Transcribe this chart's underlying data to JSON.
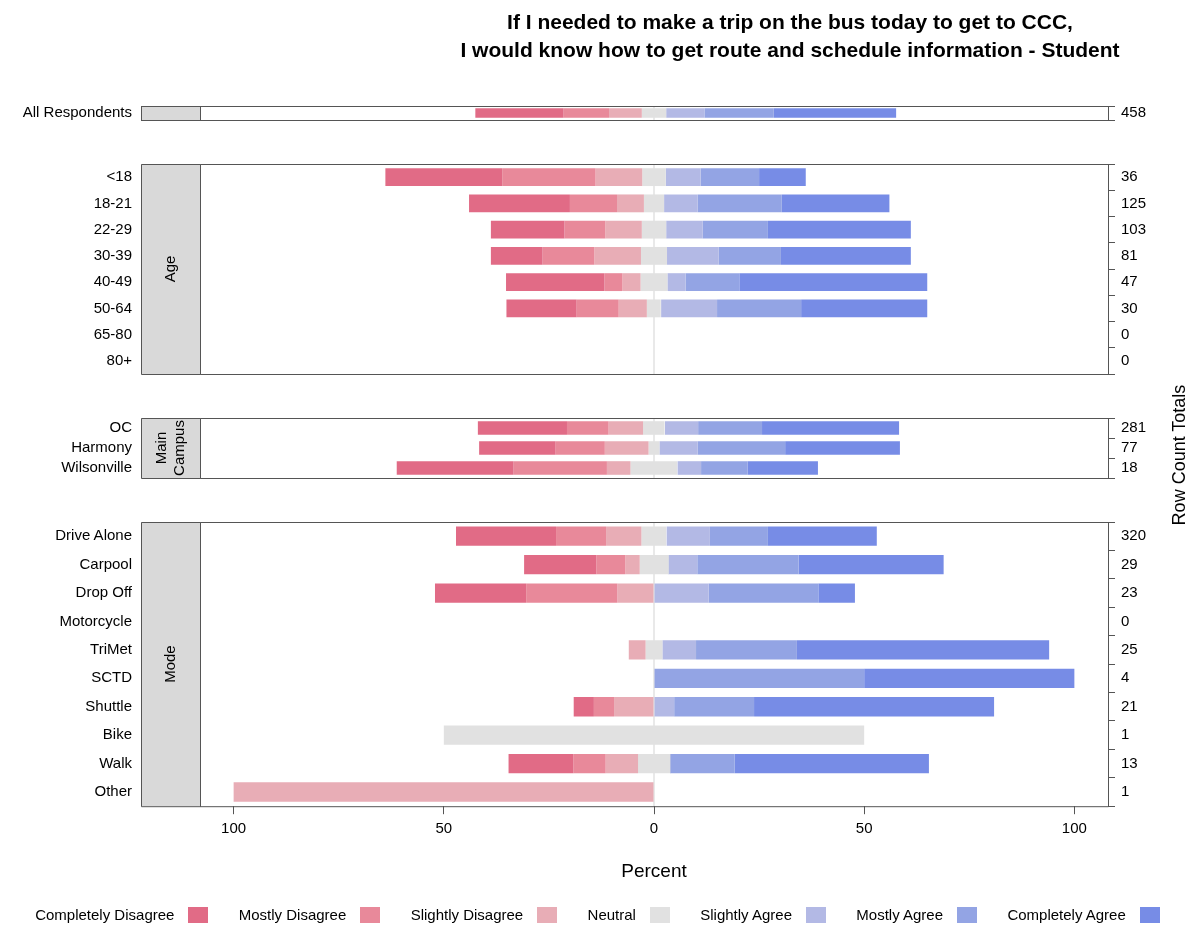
{
  "chart_data": [
    {
      "type": "bar",
      "orientation": "horizontal",
      "title": "If I needed to make a trip on the bus today to get to CCC,\nI would know how to get route and schedule information - Student",
      "categories": [
        "All Respondents"
      ],
      "y2_categories": [
        "458"
      ],
      "tick_labels": "y",
      "xlim": [
        -108,
        108
      ],
      "xticks": [
        {
          "value": -100,
          "label": null
        },
        {
          "value": -50,
          "label": null
        },
        {
          "value": 0,
          "label": null
        },
        {
          "value": 50,
          "label": null
        },
        {
          "value": 100,
          "label": null
        }
      ],
      "ref_lines": [
        {
          "axis": "x",
          "value": 0,
          "color": "#d3d3d3"
        }
      ],
      "series": [
        {
          "color": "#e16b86",
          "values": [
            21.0
          ],
          "base": [
            -42.5
          ]
        },
        {
          "color": "#e8899a",
          "values": [
            10.8
          ],
          "base": [
            -21.5
          ]
        },
        {
          "color": "#e8adb6",
          "values": [
            7.8
          ],
          "base": [
            -10.7
          ]
        },
        {
          "color": "#e1e1e1",
          "values": [
            5.8
          ],
          "base": [
            -2.9
          ]
        },
        {
          "color": "#b3b9e5",
          "values": [
            9.1
          ],
          "base": [
            2.9
          ]
        },
        {
          "color": "#93a4e4",
          "values": [
            16.5
          ],
          "base": [
            12.0
          ]
        },
        {
          "color": "#778ce6",
          "values": [
            29.1
          ],
          "base": [
            28.5
          ]
        }
      ]
    },
    {
      "type": "bar",
      "orientation": "horizontal",
      "ylabel": "Age",
      "categories": [
        "<18",
        "18-21",
        "22-29",
        "30-39",
        "40-49",
        "50-64",
        "65-80",
        "80+"
      ],
      "y2_categories": [
        "36",
        "125",
        "103",
        "81",
        "47",
        "30",
        "0",
        "0"
      ],
      "tick_labels": "y",
      "xlim": [
        -108,
        108
      ],
      "ref_lines": [
        {
          "axis": "x",
          "value": 0,
          "color": "#d3d3d3"
        }
      ],
      "series": [
        {
          "color": "#e16b86",
          "values": [
            27.8,
            24.0,
            17.5,
            12.3,
            23.4,
            16.7,
            null,
            null
          ],
          "base": [
            -63.9,
            -44.0,
            -38.8,
            -38.8,
            -35.2,
            -35.1,
            null,
            null
          ]
        },
        {
          "color": "#e8899a",
          "values": [
            22.2,
            11.2,
            9.7,
            12.3,
            4.3,
            10.0,
            null,
            null
          ],
          "base": [
            -36.1,
            -20.0,
            -21.3,
            -26.5,
            -11.8,
            -18.4,
            null,
            null
          ]
        },
        {
          "color": "#e8adb6",
          "values": [
            11.1,
            6.4,
            8.7,
            11.1,
            4.3,
            6.7,
            null,
            null
          ],
          "base": [
            -13.9,
            -8.8,
            -11.6,
            -14.2,
            -7.5,
            -8.4,
            null,
            null
          ]
        },
        {
          "color": "#e1e1e1",
          "values": [
            5.6,
            4.8,
            5.8,
            6.2,
            6.4,
            3.3,
            null,
            null
          ],
          "base": [
            -2.8,
            -2.4,
            -2.9,
            -3.1,
            -3.2,
            -1.7,
            null,
            null
          ]
        },
        {
          "color": "#b3b9e5",
          "values": [
            8.3,
            8.0,
            8.7,
            12.3,
            4.3,
            13.3,
            null,
            null
          ],
          "base": [
            2.8,
            2.4,
            2.9,
            3.1,
            3.2,
            1.7,
            null,
            null
          ]
        },
        {
          "color": "#93a4e4",
          "values": [
            13.9,
            20.0,
            15.5,
            14.8,
            12.8,
            20.0,
            null,
            null
          ],
          "base": [
            11.1,
            10.4,
            11.6,
            15.4,
            7.5,
            15.0,
            null,
            null
          ]
        },
        {
          "color": "#778ce6",
          "values": [
            11.1,
            25.6,
            34.0,
            30.9,
            44.7,
            30.0,
            null,
            null
          ],
          "base": [
            25.0,
            30.4,
            27.1,
            30.2,
            20.3,
            35.0,
            null,
            null
          ]
        }
      ]
    },
    {
      "type": "bar",
      "orientation": "horizontal",
      "ylabel": "Main Campus",
      "y2label": "Row Count Totals",
      "categories": [
        "OC",
        "Harmony",
        "Wilsonville"
      ],
      "y2_categories": [
        "281",
        "77",
        "18"
      ],
      "tick_labels": "y",
      "xlim": [
        -108,
        108
      ],
      "ref_lines": [
        {
          "axis": "x",
          "value": 0,
          "color": "#d3d3d3"
        }
      ],
      "series": [
        {
          "color": "#e16b86",
          "values": [
            21.2,
            18.2,
            27.8
          ],
          "base": [
            -41.9,
            -41.6,
            -61.2
          ]
        },
        {
          "color": "#e8899a",
          "values": [
            9.9,
            11.7,
            22.2
          ],
          "base": [
            -20.7,
            -23.4,
            -33.4
          ]
        },
        {
          "color": "#e8adb6",
          "values": [
            8.2,
            10.4,
            5.6
          ],
          "base": [
            -10.8,
            -11.7,
            -11.2
          ]
        },
        {
          "color": "#e1e1e1",
          "values": [
            5.1,
            2.6,
            11.1
          ],
          "base": [
            -2.6,
            -1.3,
            -5.6
          ]
        },
        {
          "color": "#b3b9e5",
          "values": [
            7.9,
            9.1,
            5.6
          ],
          "base": [
            2.6,
            1.3,
            5.6
          ]
        },
        {
          "color": "#93a4e4",
          "values": [
            15.2,
            20.8,
            11.1
          ],
          "base": [
            10.5,
            10.4,
            11.2
          ]
        },
        {
          "color": "#778ce6",
          "values": [
            32.6,
            27.3,
            16.7
          ],
          "base": [
            25.7,
            31.2,
            22.3
          ]
        }
      ]
    },
    {
      "type": "bar",
      "orientation": "horizontal",
      "ylabel": "Mode",
      "xlabel": "Percent",
      "legend": "bottom",
      "categories": [
        "Drive Alone",
        "Carpool",
        "Drop Off",
        "Motorcycle",
        "TriMet",
        "SCTD",
        "Shuttle",
        "Bike",
        "Walk",
        "Other"
      ],
      "y2_categories": [
        "320",
        "29",
        "23",
        "0",
        "25",
        "4",
        "21",
        "1",
        "13",
        "1"
      ],
      "xlim": [
        -108,
        108
      ],
      "xticks": [
        {
          "value": -100,
          "label": "100"
        },
        {
          "value": -50,
          "label": "50"
        },
        0,
        50,
        100
      ],
      "ref_lines": [
        {
          "axis": "x",
          "value": 0,
          "color": "#d3d3d3"
        }
      ],
      "series": [
        {
          "name": "Completely Disagree",
          "color": "#e16b86",
          "values": [
            23.8,
            17.2,
            21.7,
            null,
            null,
            null,
            4.8,
            null,
            15.4,
            null
          ],
          "base": [
            -47.1,
            -30.9,
            -52.1,
            null,
            null,
            null,
            -19.1,
            null,
            -34.6,
            null
          ]
        },
        {
          "name": "Mostly Disagree",
          "color": "#e8899a",
          "values": [
            11.9,
            6.9,
            21.7,
            null,
            null,
            null,
            4.8,
            null,
            7.7,
            null
          ],
          "base": [
            -23.3,
            -13.7,
            -30.4,
            null,
            null,
            null,
            -14.3,
            null,
            -19.2,
            null
          ]
        },
        {
          "name": "Slightly Disagree",
          "color": "#e8adb6",
          "values": [
            8.4,
            3.4,
            8.7,
            null,
            4.0,
            null,
            9.5,
            null,
            7.7,
            100
          ],
          "base": [
            -11.4,
            -6.8,
            -8.7,
            null,
            -6.0,
            null,
            -9.5,
            null,
            -11.5,
            -100
          ]
        },
        {
          "name": "Neutral",
          "color": "#e1e1e1",
          "values": [
            5.9,
            6.9,
            null,
            null,
            4.0,
            null,
            null,
            100,
            7.7,
            null
          ],
          "base": [
            -3.0,
            -3.4,
            null,
            null,
            -2.0,
            null,
            null,
            -50,
            -3.8,
            null
          ]
        },
        {
          "name": "Slightly Agree",
          "color": "#b3b9e5",
          "values": [
            10.3,
            6.9,
            13.0,
            null,
            8.0,
            null,
            4.8,
            null,
            null,
            null
          ],
          "base": [
            3.0,
            3.4,
            0,
            null,
            2.0,
            null,
            0,
            null,
            null,
            null
          ]
        },
        {
          "name": "Mostly Agree",
          "color": "#93a4e4",
          "values": [
            13.8,
            24.1,
            26.1,
            null,
            24.0,
            50,
            19.0,
            null,
            15.4,
            null
          ],
          "base": [
            13.3,
            10.3,
            13.0,
            null,
            10.0,
            0,
            4.8,
            null,
            3.8,
            null
          ]
        },
        {
          "name": "Completely Agree",
          "color": "#778ce6",
          "values": [
            25.9,
            34.5,
            8.7,
            null,
            60.0,
            50,
            57.1,
            null,
            46.2,
            null
          ],
          "base": [
            27.1,
            34.4,
            39.1,
            null,
            34.0,
            50,
            23.8,
            null,
            19.2,
            null
          ]
        }
      ]
    }
  ]
}
